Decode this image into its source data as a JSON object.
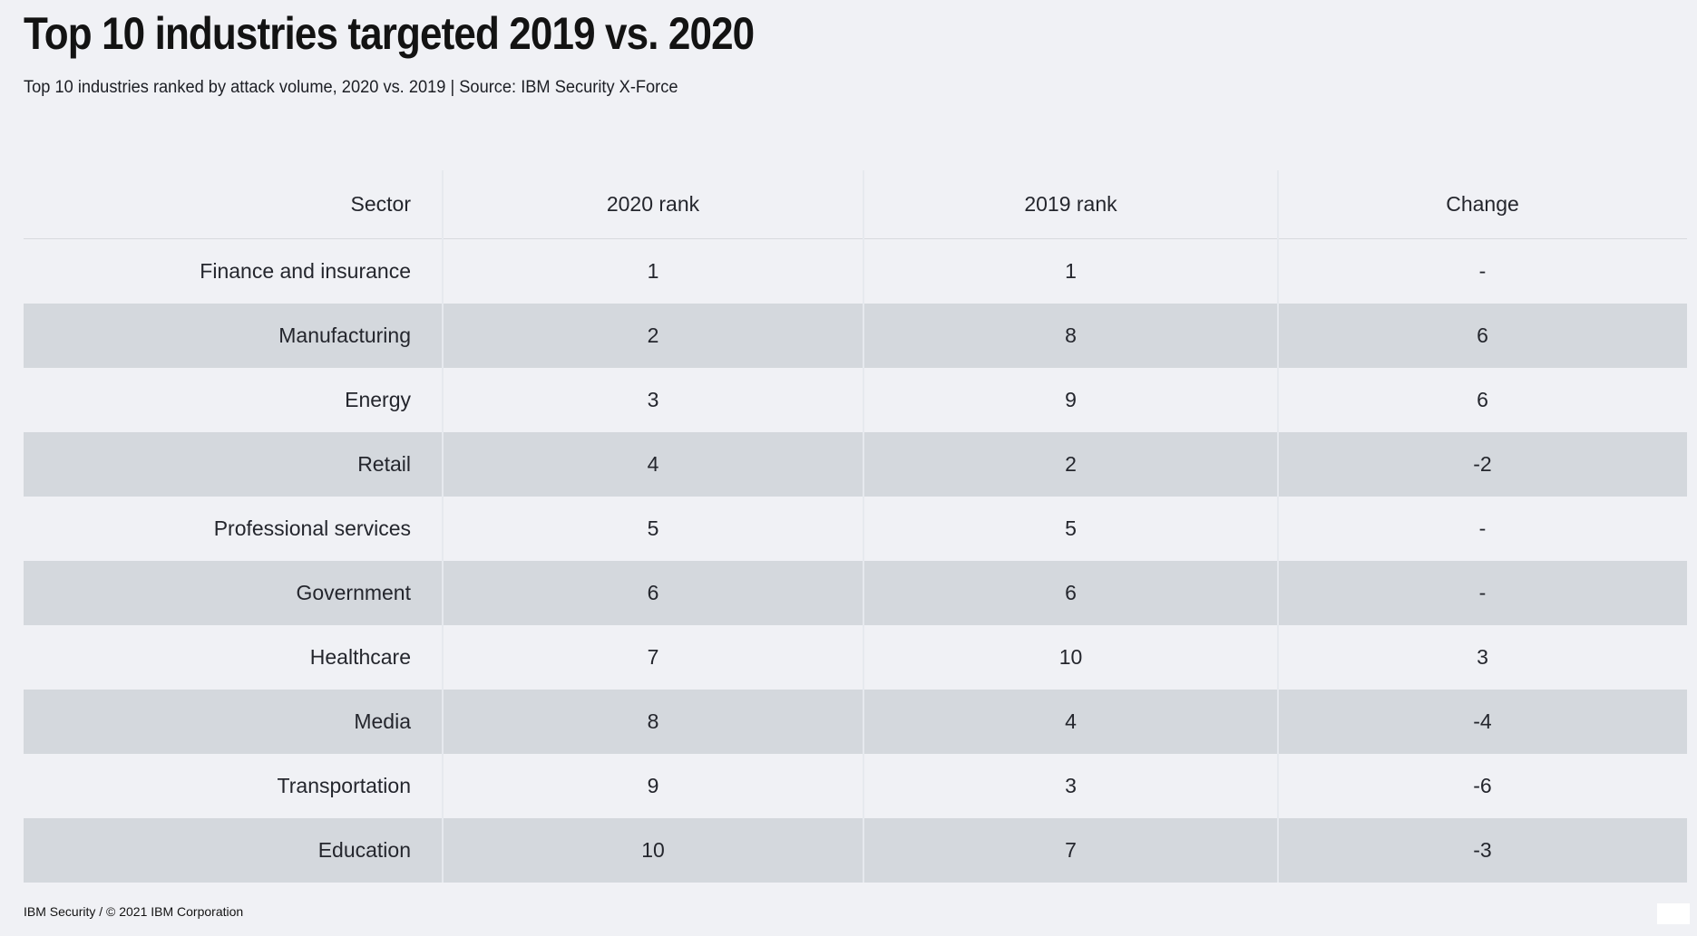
{
  "page": {
    "title": "Top 10 industries targeted 2019 vs. 2020",
    "subtitle": "Top 10 industries ranked by attack volume, 2020 vs. 2019 | Source: IBM Security X-Force",
    "footer": "IBM Security / © 2021 IBM Corporation"
  },
  "colors": {
    "background": "#f0f1f5",
    "row_stripe": "#d4d8dd",
    "column_divider": "#e6e9ee",
    "header_rule": "#d7dade",
    "text": "#24262d",
    "title_text": "#131313"
  },
  "chart_data": {
    "type": "table",
    "title": "Top 10 industries targeted 2019 vs. 2020",
    "subtitle": "Top 10 industries ranked by attack volume, 2020 vs. 2019 | Source: IBM Security X-Force",
    "columns": [
      "Sector",
      "2020 rank",
      "2019 rank",
      "Change"
    ],
    "rows": [
      [
        "Finance and insurance",
        "1",
        "1",
        "-"
      ],
      [
        "Manufacturing",
        "2",
        "8",
        "6"
      ],
      [
        "Energy",
        "3",
        "9",
        "6"
      ],
      [
        "Retail",
        "4",
        "2",
        "-2"
      ],
      [
        "Professional services",
        "5",
        "5",
        "-"
      ],
      [
        "Government",
        "6",
        "6",
        "-"
      ],
      [
        "Healthcare",
        "7",
        "10",
        "3"
      ],
      [
        "Media",
        "8",
        "4",
        "-4"
      ],
      [
        "Transportation",
        "9",
        "3",
        "-6"
      ],
      [
        "Education",
        "10",
        "7",
        "-3"
      ]
    ],
    "layout": {
      "striped_rows": "even rows shaded",
      "column_alignment": [
        "right",
        "center",
        "center",
        "center"
      ],
      "grid": "vertical separators between columns, rule under header"
    }
  }
}
